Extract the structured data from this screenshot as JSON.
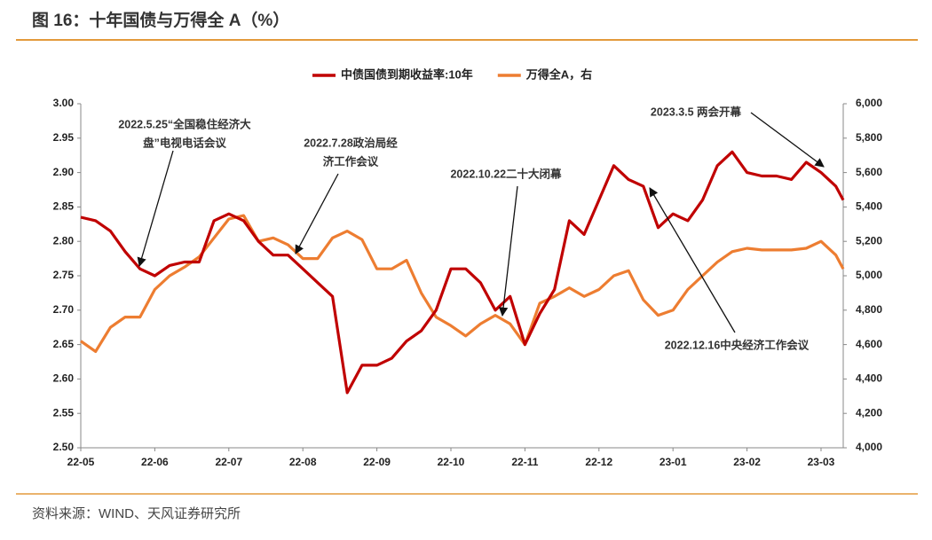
{
  "chart_data": {
    "type": "line",
    "title": "图 16：十年国债与万得全 A（%）",
    "source": "资料来源：WIND、天风证券研究所",
    "x": [
      0,
      0.2,
      0.4,
      0.6,
      0.8,
      1,
      1.2,
      1.4,
      1.6,
      1.8,
      2,
      2.2,
      2.4,
      2.6,
      2.8,
      3,
      3.2,
      3.4,
      3.6,
      3.8,
      4,
      4.2,
      4.4,
      4.6,
      4.8,
      5,
      5.2,
      5.4,
      5.6,
      5.8,
      6,
      6.2,
      6.4,
      6.6,
      6.8,
      7,
      7.2,
      7.4,
      7.6,
      7.8,
      8,
      8.2,
      8.4,
      8.6,
      8.8,
      9,
      9.2,
      9.4,
      9.6,
      9.8,
      10,
      10.2,
      10.3
    ],
    "xlim": [
      0,
      10.3
    ],
    "xticks": [
      {
        "value": 0,
        "label": "22-05"
      },
      {
        "value": 1,
        "label": "22-06"
      },
      {
        "value": 2,
        "label": "22-07"
      },
      {
        "value": 3,
        "label": "22-08"
      },
      {
        "value": 4,
        "label": "22-09"
      },
      {
        "value": 5,
        "label": "22-10"
      },
      {
        "value": 6,
        "label": "22-11"
      },
      {
        "value": 7,
        "label": "22-12"
      },
      {
        "value": 8,
        "label": "23-01"
      },
      {
        "value": 9,
        "label": "23-02"
      },
      {
        "value": 10,
        "label": "23-03"
      }
    ],
    "ylim": [
      2.5,
      3.0
    ],
    "yticks": [
      {
        "value": 2.5,
        "label": "2.50"
      },
      {
        "value": 2.55,
        "label": "2.55"
      },
      {
        "value": 2.6,
        "label": "2.60"
      },
      {
        "value": 2.65,
        "label": "2.65"
      },
      {
        "value": 2.7,
        "label": "2.70"
      },
      {
        "value": 2.75,
        "label": "2.75"
      },
      {
        "value": 2.8,
        "label": "2.80"
      },
      {
        "value": 2.85,
        "label": "2.85"
      },
      {
        "value": 2.9,
        "label": "2.90"
      },
      {
        "value": 2.95,
        "label": "2.95"
      },
      {
        "value": 3.0,
        "label": "3.00"
      }
    ],
    "y2lim": [
      4000,
      6000
    ],
    "y2ticks": [
      {
        "value": 4000,
        "label": "4,000"
      },
      {
        "value": 4200,
        "label": "4,200"
      },
      {
        "value": 4400,
        "label": "4,400"
      },
      {
        "value": 4600,
        "label": "4,600"
      },
      {
        "value": 4800,
        "label": "4,800"
      },
      {
        "value": 5000,
        "label": "5,000"
      },
      {
        "value": 5200,
        "label": "5,200"
      },
      {
        "value": 5400,
        "label": "5,400"
      },
      {
        "value": 5600,
        "label": "5,600"
      },
      {
        "value": 5800,
        "label": "5,800"
      },
      {
        "value": 6000,
        "label": "6,000"
      }
    ],
    "series": [
      {
        "name": "中债国债到期收益率:10年",
        "color": "#c00000",
        "values": [
          2.835,
          2.83,
          2.815,
          2.785,
          2.76,
          2.75,
          2.765,
          2.77,
          2.77,
          2.83,
          2.84,
          2.83,
          2.8,
          2.78,
          2.78,
          2.76,
          2.74,
          2.72,
          2.58,
          2.62,
          2.62,
          2.63,
          2.655,
          2.67,
          2.7,
          2.76,
          2.76,
          2.74,
          2.7,
          2.72,
          2.65,
          2.695,
          2.73,
          2.83,
          2.81,
          2.86,
          2.91,
          2.89,
          2.88,
          2.82,
          2.84,
          2.83,
          2.86,
          2.91,
          2.93,
          2.9,
          2.895,
          2.895,
          2.89,
          2.915,
          2.9,
          2.88,
          2.86
        ]
      },
      {
        "name": "万得全A，右",
        "color": "#ed7d31",
        "axis": "y2",
        "values": [
          4620,
          4560,
          4700,
          4760,
          4760,
          4920,
          5000,
          5050,
          5110,
          5220,
          5330,
          5350,
          5200,
          5220,
          5180,
          5100,
          5100,
          5220,
          5260,
          5210,
          5040,
          5040,
          5090,
          4900,
          4760,
          4710,
          4650,
          4720,
          4770,
          4720,
          4600,
          4840,
          4880,
          4930,
          4880,
          4920,
          5000,
          5030,
          4860,
          4770,
          4800,
          4920,
          5000,
          5080,
          5140,
          5160,
          5150,
          5150,
          5150,
          5160,
          5200,
          5120,
          5040
        ]
      }
    ],
    "annotations": [
      {
        "lines": [
          "2022.5.25“全国稳住经济大",
          "盘”电视电话会议"
        ]
      },
      {
        "lines": [
          "2022.7.28政治局经",
          "济工作会议"
        ]
      },
      {
        "lines": [
          "2022.10.22二十大闭幕"
        ]
      },
      {
        "lines": [
          "2023.3.5 两会开幕"
        ]
      },
      {
        "lines": [
          "2022.12.16中央经济工作会议"
        ]
      }
    ]
  }
}
